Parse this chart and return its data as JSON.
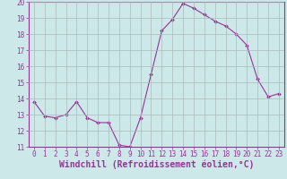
{
  "x": [
    0,
    1,
    2,
    3,
    4,
    5,
    6,
    7,
    8,
    9,
    10,
    11,
    12,
    13,
    14,
    15,
    16,
    17,
    18,
    19,
    20,
    21,
    22,
    23
  ],
  "y": [
    13.8,
    12.9,
    12.8,
    13.0,
    13.8,
    12.8,
    12.5,
    12.5,
    11.1,
    11.0,
    12.8,
    15.5,
    18.2,
    18.9,
    19.9,
    19.6,
    19.2,
    18.8,
    18.5,
    18.0,
    17.3,
    15.2,
    14.1,
    14.3
  ],
  "line_color": "#993399",
  "marker": "D",
  "marker_size": 2.0,
  "bg_color": "#cce8e8",
  "grid_color": "#aabbbb",
  "xlabel": "Windchill (Refroidissement éolien,°C)",
  "ylim": [
    11,
    20
  ],
  "xlim_min": -0.5,
  "xlim_max": 23.5,
  "yticks": [
    11,
    12,
    13,
    14,
    15,
    16,
    17,
    18,
    19,
    20
  ],
  "xticks": [
    0,
    1,
    2,
    3,
    4,
    5,
    6,
    7,
    8,
    9,
    10,
    11,
    12,
    13,
    14,
    15,
    16,
    17,
    18,
    19,
    20,
    21,
    22,
    23
  ],
  "tick_fontsize": 5.5,
  "xlabel_fontsize": 7.0,
  "tick_color": "#993399",
  "label_color": "#993399",
  "linewidth": 0.8
}
